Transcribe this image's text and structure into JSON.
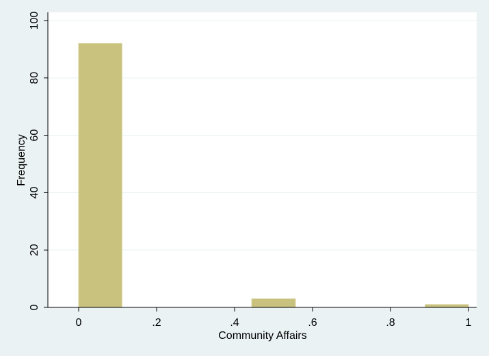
{
  "chart_data": {
    "type": "bar",
    "subtype": "histogram",
    "xlabel": "Community Affairs",
    "ylabel": "Frequency",
    "xlim": [
      -0.08,
      1.0
    ],
    "ylim": [
      0,
      100
    ],
    "x_ticks": [
      {
        "value": 0,
        "label": "0"
      },
      {
        "value": 0.2,
        "label": ".2"
      },
      {
        "value": 0.4,
        "label": ".4"
      },
      {
        "value": 0.6,
        "label": ".6"
      },
      {
        "value": 0.8,
        "label": ".8"
      },
      {
        "value": 1.0,
        "label": "1"
      }
    ],
    "y_ticks": [
      {
        "value": 0,
        "label": "0"
      },
      {
        "value": 20,
        "label": "20"
      },
      {
        "value": 40,
        "label": "40"
      },
      {
        "value": 60,
        "label": "60"
      },
      {
        "value": 80,
        "label": "80"
      },
      {
        "value": 100,
        "label": "100"
      }
    ],
    "bars": [
      {
        "x_start": 0.0,
        "x_end": 0.111,
        "value": 92
      },
      {
        "x_start": 0.444,
        "x_end": 0.556,
        "value": 3
      },
      {
        "x_start": 0.889,
        "x_end": 1.0,
        "value": 1
      }
    ],
    "grid": true,
    "colors": {
      "bar_fill": "#c9c17e",
      "bar_stroke": "#d8d29a",
      "plot_background": "#ffffff",
      "page_background": "#eaf2f3",
      "grid": "#eaf2f3",
      "axis": "#000000"
    }
  }
}
